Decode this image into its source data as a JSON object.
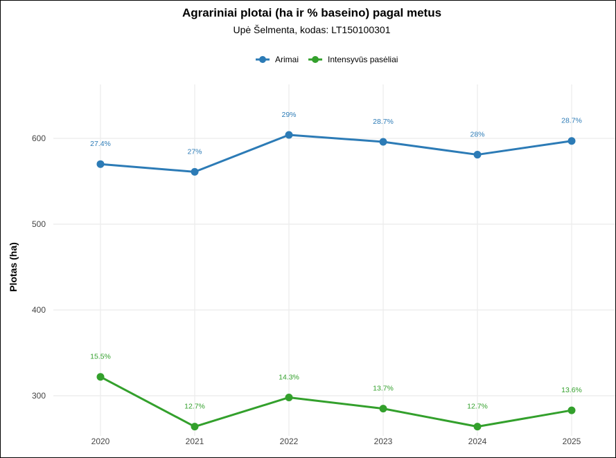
{
  "chart_data": {
    "type": "line",
    "title": "Agrariniai plotai (ha ir % baseino) pagal metus",
    "subtitle": "Upė Šelmenta, kodas: LT150100301",
    "xlabel": "",
    "ylabel": "Plotas (ha)",
    "legend_position": "top",
    "grid": true,
    "x": [
      "2020",
      "2021",
      "2022",
      "2023",
      "2024",
      "2025"
    ],
    "y_ticks": [
      300,
      400,
      500,
      600
    ],
    "ylim": [
      243,
      662
    ],
    "series": [
      {
        "name": "Arimai",
        "color": "#2C7BB6",
        "values": [
          570,
          561,
          604,
          596,
          581,
          597
        ],
        "labels": [
          "27.4%",
          "27%",
          "29%",
          "28.7%",
          "28%",
          "28.7%"
        ]
      },
      {
        "name": "Intensyvūs pasėliai",
        "color": "#33A02C",
        "values": [
          322,
          264,
          298,
          285,
          264,
          283
        ],
        "labels": [
          "15.5%",
          "12.7%",
          "14.3%",
          "13.7%",
          "12.7%",
          "13.6%"
        ]
      }
    ]
  }
}
